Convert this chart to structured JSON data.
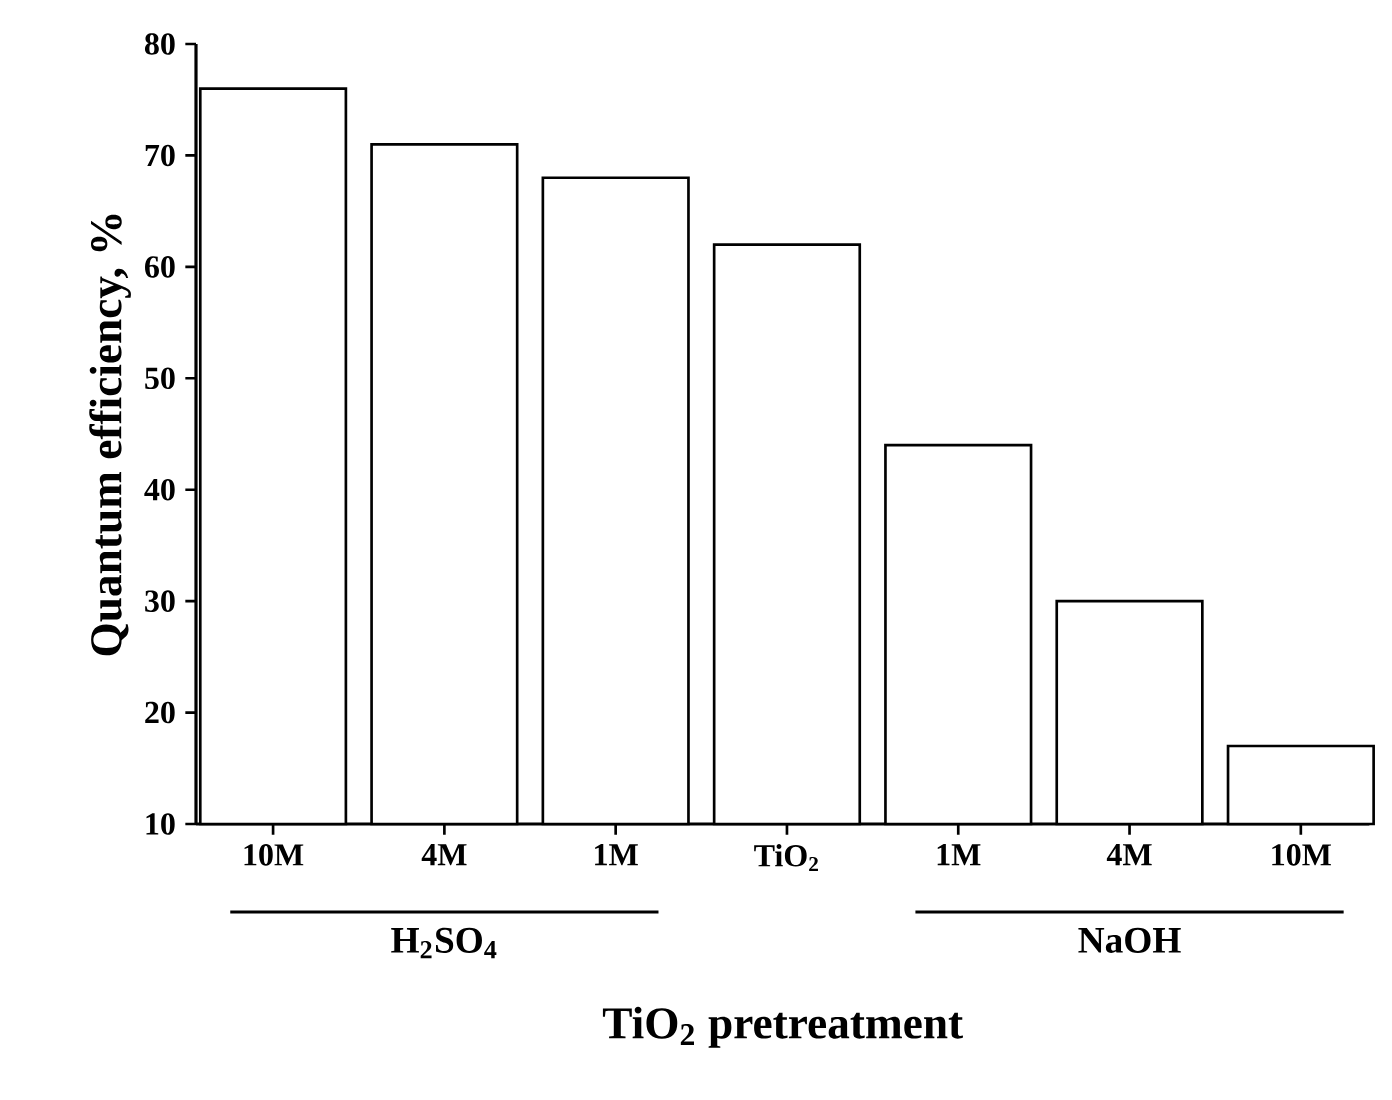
{
  "chart_data": {
    "type": "bar",
    "xlabel": "TiO$_{2}$ pretreatment",
    "ylabel": "Quantum efficiency, %",
    "categories": [
      "10M",
      "4M",
      "1M",
      "TiO$_{2}$",
      "1M",
      "4M",
      "10M"
    ],
    "values": [
      76,
      71,
      68,
      62,
      44,
      30,
      17
    ],
    "color": "#000000",
    "ylim": [
      10,
      80
    ],
    "yticks": [
      10,
      20,
      30,
      40,
      50,
      60,
      70,
      80
    ],
    "annotations": [
      "H$_{2}$SO$_{4}$",
      "NaOH"
    ]
  }
}
